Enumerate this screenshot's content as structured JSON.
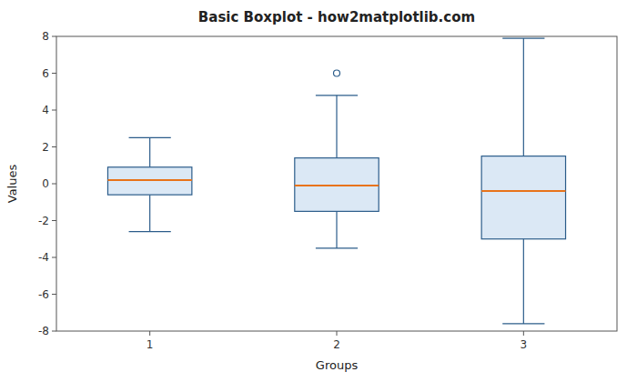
{
  "chart_data": {
    "type": "box",
    "title": "Basic Boxplot - how2matplotlib.com",
    "x_label": "Groups",
    "y_label": "Values",
    "categories": [
      "1",
      "2",
      "3"
    ],
    "boxes": [
      {
        "q1": -0.6,
        "median": 0.2,
        "q3": 0.9,
        "whisker_low": -2.6,
        "whisker_high": 2.5,
        "outliers": []
      },
      {
        "q1": -1.5,
        "median": -0.1,
        "q3": 1.4,
        "whisker_low": -3.5,
        "whisker_high": 4.8,
        "outliers": [
          6.0
        ]
      },
      {
        "q1": -3.0,
        "median": -0.4,
        "q3": 1.5,
        "whisker_low": -7.6,
        "whisker_high": 7.9,
        "outliers": []
      }
    ],
    "ylim": [
      -8,
      8
    ],
    "yticks": [
      -8,
      -6,
      -4,
      -2,
      0,
      2,
      4,
      6,
      8
    ],
    "grid": false
  }
}
